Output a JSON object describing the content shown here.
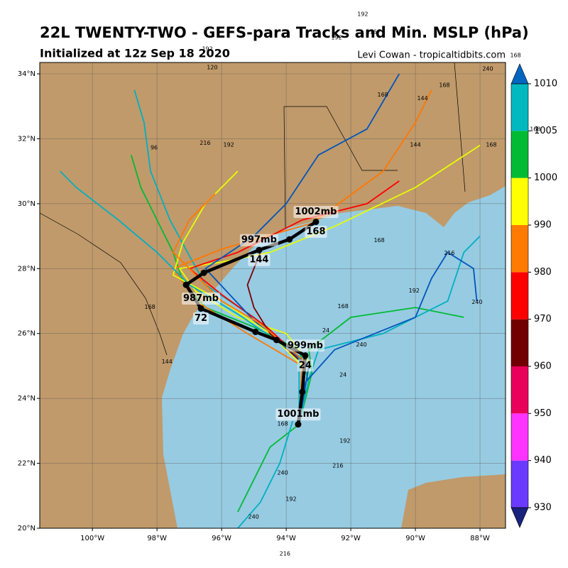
{
  "header": {
    "title": "22L TWENTY-TWO - GEFS-para Tracks and Min. MSLP (hPa)",
    "subtitle": "Initialized at 12z Sep 18 2020",
    "credit": "Levi Cowan - tropicaltidbits.com"
  },
  "map": {
    "xlim": [
      -101.63,
      -87.21
    ],
    "ylim": [
      20,
      34.35
    ],
    "xticks": [
      {
        "value": -100,
        "label": "100°W"
      },
      {
        "value": -98,
        "label": "98°W"
      },
      {
        "value": -96,
        "label": "96°W"
      },
      {
        "value": -94,
        "label": "94°W"
      },
      {
        "value": -92,
        "label": "92°W"
      },
      {
        "value": -90,
        "label": "90°W"
      },
      {
        "value": -88,
        "label": "88°W"
      }
    ],
    "yticks": [
      {
        "value": 20,
        "label": "20°N"
      },
      {
        "value": 22,
        "label": "22°N"
      },
      {
        "value": 24,
        "label": "24°N"
      },
      {
        "value": 26,
        "label": "26°N"
      },
      {
        "value": 28,
        "label": "28°N"
      },
      {
        "value": 30,
        "label": "30°N"
      },
      {
        "value": 32,
        "label": "32°N"
      },
      {
        "value": 34,
        "label": "34°N"
      }
    ],
    "grid": true,
    "land_color": "#c09a6b",
    "water_color": "#97cbe2"
  },
  "colorbar": {
    "levels": [
      930,
      940,
      950,
      960,
      970,
      980,
      990,
      1000,
      1005,
      1010
    ],
    "colors": [
      "#6a3bff",
      "#ff33ff",
      "#e8005a",
      "#730000",
      "#ff0000",
      "#ff7a00",
      "#ffff00",
      "#00bb33",
      "#00b8c0"
    ],
    "under_color": "#1a237e",
    "over_color": "#0066c0"
  },
  "mean_track": {
    "color": "#000000",
    "points": [
      {
        "lon": -93.63,
        "lat": 23.2,
        "label": "1001mb"
      },
      {
        "lon": -93.5,
        "lat": 24.2
      },
      {
        "lon": -93.41,
        "lat": 25.32,
        "hour": 24,
        "label": "999mb"
      },
      {
        "lon": -94.3,
        "lat": 25.8
      },
      {
        "lon": -94.95,
        "lat": 26.05
      },
      {
        "lon": -96.64,
        "lat": 26.77,
        "hour": 72,
        "label": "987mb"
      },
      {
        "lon": -97.1,
        "lat": 27.5
      },
      {
        "lon": -96.55,
        "lat": 27.87
      },
      {
        "lon": -94.84,
        "lat": 28.57,
        "hour": 144,
        "label": "997mb"
      },
      {
        "lon": -93.9,
        "lat": 28.9
      },
      {
        "lon": -93.08,
        "lat": 29.44,
        "hour": 168,
        "label": "1002mb"
      }
    ]
  },
  "members": [
    {
      "color": "#00bb33",
      "lat": [
        23.2,
        24.5,
        25.5,
        26.2,
        26.8,
        27.6,
        28.5,
        29.5,
        30.5,
        31.5
      ],
      "lon": [
        -93.6,
        -93.3,
        -93.6,
        -95,
        -96.5,
        -97.2,
        -97.5,
        -98,
        -98.5,
        -98.8
      ]
    },
    {
      "color": "#e6ff00",
      "lat": [
        23.2,
        25,
        26,
        26.5,
        27.3,
        28,
        28.2,
        28.5,
        29.3,
        30.5,
        31.8
      ],
      "lon": [
        -93.6,
        -93.2,
        -94,
        -95.5,
        -96.8,
        -97.3,
        -96,
        -94.5,
        -92.5,
        -90,
        -88
      ]
    },
    {
      "color": "#00b0c0",
      "lat": [
        23.2,
        25.2,
        26.5,
        27.5,
        28.4,
        29.5,
        31,
        32.5,
        33.5
      ],
      "lon": [
        -93.6,
        -93.5,
        -95,
        -96.5,
        -97,
        -97.6,
        -98.2,
        -98.4,
        -98.7
      ]
    },
    {
      "color": "#ff7700",
      "lat": [
        23.3,
        25,
        26,
        27,
        28,
        28.6,
        29.4,
        31,
        32.5,
        33.5
      ],
      "lon": [
        -93.6,
        -93.5,
        -95.2,
        -96.8,
        -97.5,
        -96,
        -93.2,
        -91,
        -90,
        -89.5
      ]
    },
    {
      "color": "#ff0000",
      "lat": [
        23.2,
        25.1,
        26.2,
        27.2,
        28,
        28.5,
        29.5,
        30,
        30.7
      ],
      "lon": [
        -93.6,
        -93.4,
        -94.6,
        -96,
        -97,
        -95.5,
        -93.5,
        -91.5,
        -90.5
      ]
    },
    {
      "color": "#0055bb",
      "lat": [
        23.2,
        25,
        26.4,
        28,
        29,
        30,
        31.5,
        32.3,
        34
      ],
      "lon": [
        -93.6,
        -93.3,
        -95,
        -96.5,
        -95,
        -94,
        -93,
        -91.5,
        -90.5
      ]
    },
    {
      "color": "#00bb33",
      "lat": [
        23.2,
        24.8,
        25.5,
        26.5,
        26.8,
        26.5
      ],
      "lon": [
        -93.6,
        -93.2,
        -93.3,
        -92,
        -90,
        -88.5
      ]
    },
    {
      "color": "#00b0c0",
      "lat": [
        23.2,
        24.6,
        25.5,
        26,
        27,
        28.5,
        29
      ],
      "lon": [
        -93.6,
        -93.3,
        -93,
        -91,
        -89,
        -88.5,
        -88
      ]
    },
    {
      "color": "#0055bb",
      "lat": [
        23.2,
        24.5,
        25.5,
        26.5,
        27.7,
        28.5,
        28,
        27
      ],
      "lon": [
        -93.6,
        -93.4,
        -92.5,
        -90,
        -89.5,
        -89,
        -88.2,
        -88.1
      ]
    },
    {
      "color": "#00bb33",
      "lat": [
        23.2,
        22.5,
        21.5,
        20.5
      ],
      "lon": [
        -93.6,
        -94.5,
        -95,
        -95.5
      ]
    },
    {
      "color": "#00b0c0",
      "lat": [
        23.3,
        22,
        20.8,
        20
      ],
      "lon": [
        -93.8,
        -94.2,
        -94.8,
        -95.5
      ]
    },
    {
      "color": "#e6ff00",
      "lat": [
        23.2,
        25,
        26,
        27,
        27.8,
        28.8,
        30,
        31
      ],
      "lon": [
        -93.6,
        -93.5,
        -94.5,
        -96,
        -97.5,
        -97.2,
        -96.5,
        -95.5
      ]
    },
    {
      "color": "#7a0000",
      "lat": [
        23.2,
        25,
        26,
        26.8,
        27.5,
        28.5
      ],
      "lon": [
        -93.6,
        -93.4,
        -94.5,
        -95,
        -95.2,
        -94.8
      ]
    },
    {
      "color": "#00b0c0",
      "lat": [
        23.2,
        25.3,
        26.6,
        27.5,
        28.5,
        29.5,
        30.5,
        31
      ],
      "lon": [
        -93.6,
        -93.6,
        -95.5,
        -97,
        -98,
        -99.2,
        -100.5,
        -101
      ]
    },
    {
      "color": "#ff7700",
      "lat": [
        23.2,
        25.2,
        26.3,
        27,
        28.5,
        29.5,
        30.3
      ],
      "lon": [
        -93.6,
        -93.5,
        -94.8,
        -96,
        -97.5,
        -97,
        -96.2
      ]
    }
  ],
  "hour_labels": [
    {
      "text": 168,
      "lon": -94.11,
      "lat": 23.22
    },
    {
      "text": 192,
      "lon": -92.18,
      "lat": 22.69
    },
    {
      "text": 216,
      "lon": -92.4,
      "lat": 21.93
    },
    {
      "text": 240,
      "lon": -94.11,
      "lat": 21.71
    },
    {
      "text": 192,
      "lon": -93.85,
      "lat": 20.9
    },
    {
      "text": 240,
      "lon": -95.01,
      "lat": 20.35
    },
    {
      "text": 216,
      "lon": -94.04,
      "lat": 19.21
    },
    {
      "text": 192,
      "lon": -90.04,
      "lat": 27.32
    },
    {
      "text": 240,
      "lon": -88.09,
      "lat": 26.97
    },
    {
      "text": 216,
      "lon": -88.95,
      "lat": 28.48
    },
    {
      "text": 168,
      "lon": -91.12,
      "lat": 28.87
    },
    {
      "text": 168,
      "lon": -92.24,
      "lat": 26.84
    },
    {
      "text": 240,
      "lon": -91.67,
      "lat": 25.65
    },
    {
      "text": 24,
      "lon": -92.24,
      "lat": 24.73
    },
    {
      "text": 24,
      "lon": -92.77,
      "lat": 26.09
    },
    {
      "text": 96,
      "lon": -98.09,
      "lat": 31.72
    },
    {
      "text": 216,
      "lon": -96.51,
      "lat": 31.87
    },
    {
      "text": 192,
      "lon": -95.78,
      "lat": 31.81
    },
    {
      "text": 120,
      "lon": -96.29,
      "lat": 34.2
    },
    {
      "text": 192,
      "lon": -91.63,
      "lat": 35.84
    },
    {
      "text": 216,
      "lon": -91.36,
      "lat": 35.29
    },
    {
      "text": 192,
      "lon": -92.44,
      "lat": 35.12
    },
    {
      "text": 168,
      "lon": -86.9,
      "lat": 34.57
    },
    {
      "text": 168,
      "lon": -86.29,
      "lat": 32.29
    },
    {
      "text": 240,
      "lon": -87.76,
      "lat": 34.15
    },
    {
      "text": 168,
      "lon": -89.1,
      "lat": 33.65
    },
    {
      "text": 144,
      "lon": -89.78,
      "lat": 33.25
    },
    {
      "text": 168,
      "lon": -91.01,
      "lat": 33.36
    },
    {
      "text": 144,
      "lon": -90.0,
      "lat": 31.81
    },
    {
      "text": 168,
      "lon": -87.65,
      "lat": 31.81
    },
    {
      "text": 168,
      "lon": -98.22,
      "lat": 26.81
    },
    {
      "text": 144,
      "lon": -97.69,
      "lat": 25.13
    },
    {
      "text": 192,
      "lon": -96.44,
      "lat": 34.77
    }
  ]
}
